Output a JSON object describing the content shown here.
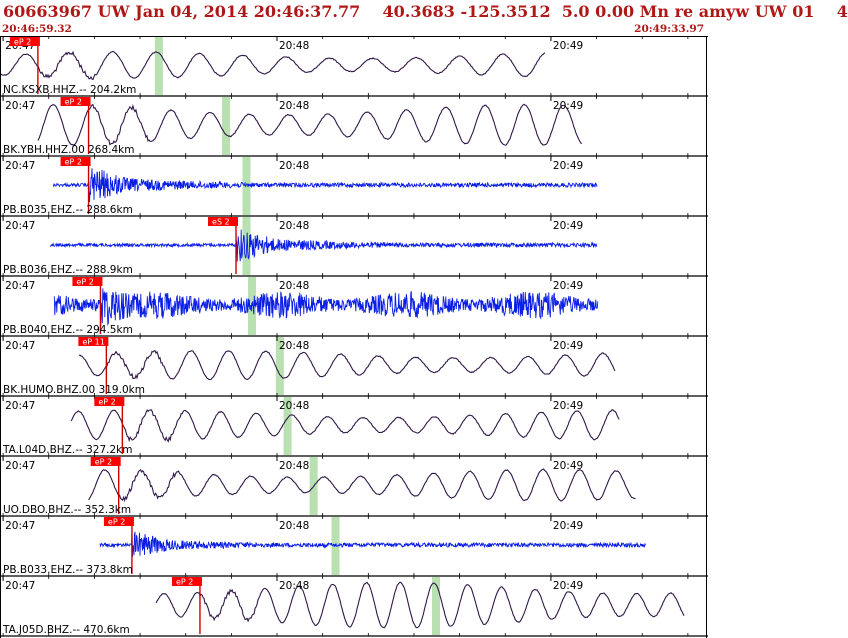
{
  "header": {
    "title": "60663967 UW Jan 04, 2014 20:46:37.77    40.3683 -125.3512  5.0 0.00 Mn re amyw UW 01    4",
    "start_time": "20:46:59.32",
    "end_time": "20:49:33.97"
  },
  "colors": {
    "header_text": "#b01818",
    "trace_dark": "#301848",
    "trace_blue": "#0a1ee6",
    "pick_box": "#ff0000",
    "pick_line": "#cc0000",
    "highlight": "#b8e0b0",
    "grid": "#000000"
  },
  "chart_data": {
    "type": "line",
    "x_unit": "seconds after 20:46:59.32",
    "xlim": [
      0,
      154.65
    ],
    "time_labels": [
      {
        "label": "20:47",
        "t": 0.68
      },
      {
        "label": "20:48",
        "t": 60.68
      },
      {
        "label": "20:49",
        "t": 120.68
      }
    ],
    "channels": [
      {
        "label": "NC.KSXB.HHZ.-- 204.2km",
        "pick": "eP 2",
        "pick_t": 8.3,
        "green_t": 34.8,
        "trace_start_t": 0,
        "trace_end_t": 119.5,
        "type": "long-period",
        "color": "dark",
        "period_s": 9.5,
        "amp": 0.55
      },
      {
        "label": "BK.YBH.HHZ.00 268.4km",
        "pick": "eP 2",
        "pick_t": 19.4,
        "green_t": 49.5,
        "trace_start_t": 8.3,
        "trace_end_t": 127.5,
        "type": "long-period",
        "color": "dark",
        "period_s": 8.6,
        "amp": 0.85
      },
      {
        "label": "PB.B035.EHZ.-- 288.6km",
        "pick": "eP 2",
        "pick_t": 19.4,
        "green_t": 54.0,
        "trace_start_t": 11.6,
        "trace_end_t": 130.8,
        "type": "high-freq",
        "color": "blue",
        "period_s": 0,
        "amp": 0.75
      },
      {
        "label": "PB.B036.EHZ.-- 288.9km",
        "pick": "eS 2",
        "pick_t": 51.7,
        "green_t": 54.0,
        "trace_start_t": 11.0,
        "trace_end_t": 130.8,
        "type": "high-freq",
        "color": "blue",
        "period_s": 0,
        "amp": 0.7
      },
      {
        "label": "PB.B040.EHZ.-- 294.5km",
        "pick": "eP 2",
        "pick_t": 22.0,
        "green_t": 55.2,
        "trace_start_t": 11.9,
        "trace_end_t": 131.0,
        "type": "high-freq",
        "color": "blue",
        "period_s": 0,
        "amp": 0.9
      },
      {
        "label": "BK.HUMO.BHZ.00 319.0km",
        "pick": "eP 11",
        "pick_t": 23.3,
        "green_t": 61.3,
        "trace_start_t": 17.3,
        "trace_end_t": 134.8,
        "type": "long-period",
        "color": "dark",
        "period_s": 8.2,
        "amp": 0.6
      },
      {
        "label": "TA.L04D.BHZ.-- 327.2km",
        "pick": "eP 2",
        "pick_t": 26.8,
        "green_t": 63.0,
        "trace_start_t": 15.6,
        "trace_end_t": 135.7,
        "type": "long-period",
        "color": "dark",
        "period_s": 7.8,
        "amp": 0.62
      },
      {
        "label": "UO.DBO.BHZ.-- 352.3km",
        "pick": "eP 2",
        "pick_t": 26.0,
        "green_t": 68.7,
        "trace_start_t": 19.4,
        "trace_end_t": 139.4,
        "type": "long-period",
        "color": "dark",
        "period_s": 8.0,
        "amp": 0.65
      },
      {
        "label": "PB.B033.EHZ.-- 373.8km",
        "pick": "eP 2",
        "pick_t": 28.9,
        "green_t": 73.5,
        "trace_start_t": 21.9,
        "trace_end_t": 141.5,
        "type": "high-freq",
        "color": "blue",
        "period_s": 0,
        "amp": 0.55
      },
      {
        "label": "TA.J05D.BHZ.-- 470.6km",
        "pick": "eP 2",
        "pick_t": 43.8,
        "green_t": 95.5,
        "trace_start_t": 34.2,
        "trace_end_t": 150.0,
        "type": "long-period",
        "color": "dark",
        "period_s": 7.4,
        "amp": 0.95
      }
    ]
  }
}
